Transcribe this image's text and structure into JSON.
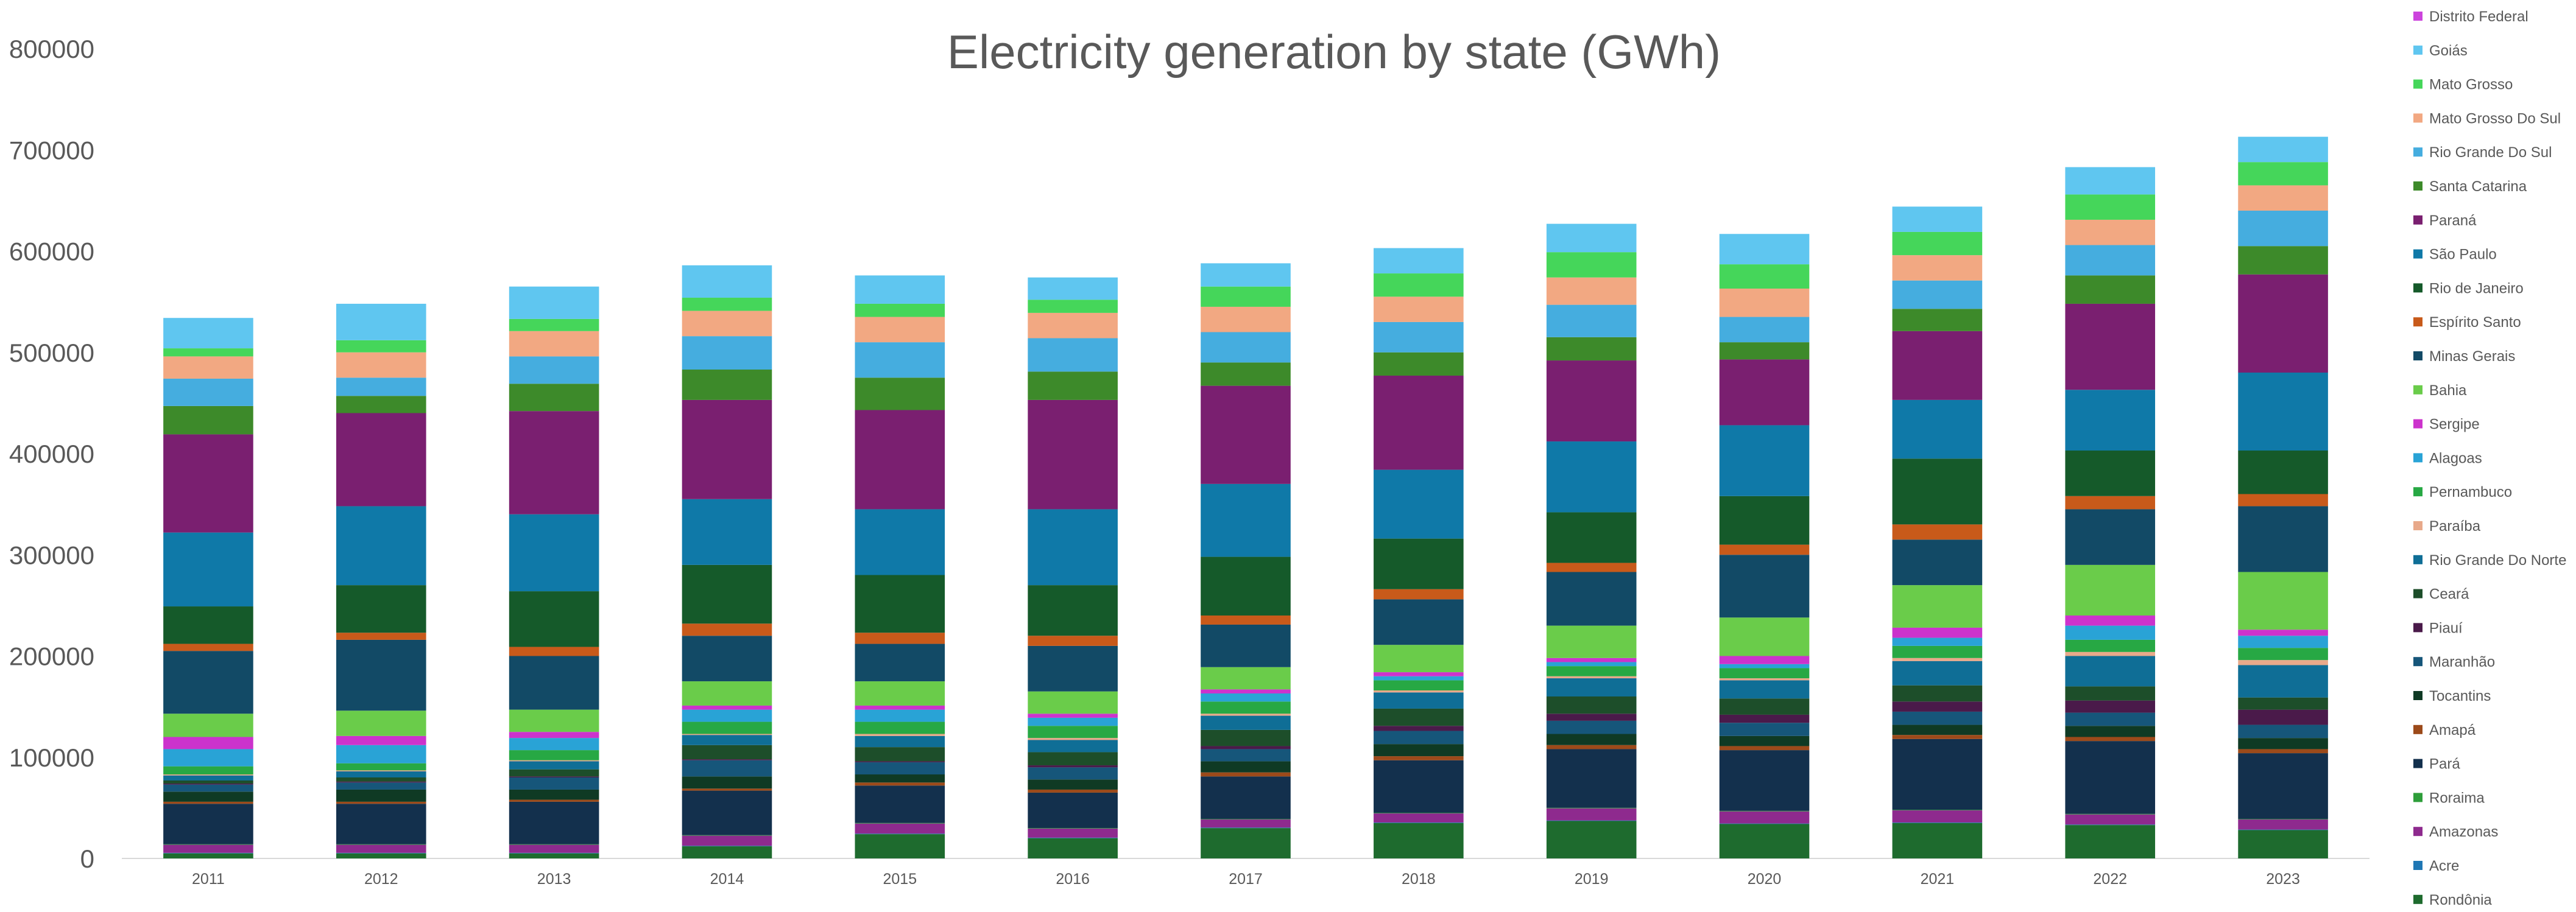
{
  "chart_data": {
    "type": "bar",
    "stacked": true,
    "title": "Electricity generation by state (GWh)",
    "xlabel": "",
    "ylabel": "",
    "ylim": [
      0,
      800000
    ],
    "yticks": [
      0,
      100000,
      200000,
      300000,
      400000,
      500000,
      600000,
      700000,
      800000
    ],
    "grid": false,
    "legend_position": "right",
    "categories": [
      "2011",
      "2012",
      "2013",
      "2014",
      "2015",
      "2016",
      "2017",
      "2018",
      "2019",
      "2020",
      "2021",
      "2022",
      "2023"
    ],
    "series": [
      {
        "name": "Rondônia",
        "color": "#1e6b2e",
        "values": [
          5000,
          5000,
          5000,
          12000,
          24000,
          20000,
          30000,
          35000,
          37000,
          34000,
          35000,
          33000,
          28000
        ]
      },
      {
        "name": "Acre",
        "color": "#1f77b4",
        "values": [
          500,
          500,
          500,
          500,
          500,
          500,
          500,
          500,
          500,
          500,
          500,
          500,
          500
        ]
      },
      {
        "name": "Amazonas",
        "color": "#8e2a8e",
        "values": [
          8000,
          8000,
          8000,
          10000,
          10000,
          9000,
          8000,
          9000,
          12000,
          12000,
          12000,
          10000,
          10000
        ]
      },
      {
        "name": "Roraima",
        "color": "#2e9e3a",
        "values": [
          500,
          500,
          500,
          500,
          500,
          500,
          500,
          500,
          500,
          500,
          500,
          500,
          500
        ]
      },
      {
        "name": "Pará",
        "color": "#13304d",
        "values": [
          40000,
          40000,
          42000,
          44000,
          37000,
          35000,
          42000,
          52000,
          58000,
          60000,
          70000,
          72000,
          65000
        ]
      },
      {
        "name": "Amapá",
        "color": "#9c4a1a",
        "values": [
          2000,
          2000,
          2000,
          2000,
          3000,
          3000,
          4000,
          4000,
          4000,
          4000,
          4000,
          4000,
          4000
        ]
      },
      {
        "name": "Tocantins",
        "color": "#0f3a24",
        "values": [
          10000,
          12000,
          10000,
          12000,
          8000,
          10000,
          11000,
          12000,
          11000,
          10000,
          10000,
          11000,
          11000
        ]
      },
      {
        "name": "Maranhão",
        "color": "#16567a",
        "values": [
          7000,
          7000,
          12000,
          16000,
          12000,
          12000,
          12000,
          13000,
          13000,
          13000,
          13000,
          13000,
          13000
        ]
      },
      {
        "name": "Piauí",
        "color": "#4a1a4a",
        "values": [
          1000,
          1000,
          1000,
          1000,
          1000,
          2000,
          3000,
          5000,
          7000,
          8000,
          10000,
          12000,
          15000
        ]
      },
      {
        "name": "Ceará",
        "color": "#1d4e2a",
        "values": [
          3000,
          4000,
          7000,
          14000,
          14000,
          13000,
          16000,
          17000,
          17000,
          16000,
          16000,
          14000,
          12000
        ]
      },
      {
        "name": "Rio Grande Do Norte",
        "color": "#0f6e96",
        "values": [
          5000,
          6000,
          8000,
          10000,
          11000,
          12000,
          14000,
          16000,
          18000,
          18000,
          24000,
          30000,
          32000
        ]
      },
      {
        "name": "Paraíba",
        "color": "#e8a98a",
        "values": [
          1000,
          1000,
          1000,
          1000,
          2000,
          2000,
          2000,
          2000,
          2000,
          2000,
          3000,
          4000,
          5000
        ]
      },
      {
        "name": "Pernambuco",
        "color": "#27a844",
        "values": [
          8000,
          7000,
          10000,
          12000,
          12000,
          12000,
          12000,
          10000,
          10000,
          10000,
          12000,
          12000,
          12000
        ]
      },
      {
        "name": "Alagoas",
        "color": "#29a3d6",
        "values": [
          17000,
          18000,
          12000,
          12000,
          12000,
          8000,
          8000,
          4000,
          4000,
          4000,
          8000,
          14000,
          12000
        ]
      },
      {
        "name": "Sergipe",
        "color": "#cc33cc",
        "values": [
          12000,
          9000,
          6000,
          4000,
          4000,
          4000,
          4000,
          4000,
          4000,
          8000,
          10000,
          10000,
          6000
        ]
      },
      {
        "name": "Bahia",
        "color": "#6acc4a",
        "values": [
          23000,
          25000,
          22000,
          24000,
          24000,
          22000,
          22000,
          27000,
          32000,
          38000,
          42000,
          50000,
          57000
        ]
      },
      {
        "name": "Minas Gerais",
        "color": "#124a66",
        "values": [
          62000,
          70000,
          53000,
          45000,
          37000,
          45000,
          42000,
          45000,
          53000,
          62000,
          45000,
          55000,
          65000
        ]
      },
      {
        "name": "Espírito Santo",
        "color": "#c85a1a",
        "values": [
          7000,
          7000,
          9000,
          12000,
          11000,
          10000,
          9000,
          10000,
          9000,
          10000,
          15000,
          13000,
          12000
        ]
      },
      {
        "name": "Rio de Janeiro",
        "color": "#155a2a",
        "values": [
          37000,
          47000,
          55000,
          58000,
          57000,
          50000,
          58000,
          50000,
          50000,
          48000,
          65000,
          45000,
          43000
        ]
      },
      {
        "name": "São Paulo",
        "color": "#0f79a8",
        "values": [
          73000,
          78000,
          76000,
          65000,
          65000,
          75000,
          72000,
          68000,
          70000,
          70000,
          58000,
          60000,
          77000
        ]
      },
      {
        "name": "Paraná",
        "color": "#7a1f70",
        "values": [
          97000,
          92000,
          102000,
          98000,
          98000,
          108000,
          97000,
          93000,
          80000,
          65000,
          68000,
          85000,
          97000
        ]
      },
      {
        "name": "Santa Catarina",
        "color": "#3d8a2a",
        "values": [
          28000,
          17000,
          27000,
          30000,
          32000,
          28000,
          23000,
          23000,
          23000,
          17000,
          22000,
          28000,
          28000
        ]
      },
      {
        "name": "Rio Grande Do Sul",
        "color": "#45addf",
        "values": [
          27000,
          18000,
          27000,
          33000,
          35000,
          33000,
          30000,
          30000,
          32000,
          25000,
          28000,
          30000,
          35000
        ]
      },
      {
        "name": "Mato Grosso Do Sul",
        "color": "#f2a882",
        "values": [
          22000,
          25000,
          25000,
          25000,
          25000,
          25000,
          25000,
          25000,
          27000,
          28000,
          25000,
          25000,
          25000
        ]
      },
      {
        "name": "Mato Grosso",
        "color": "#45d65a",
        "values": [
          8000,
          12000,
          12000,
          13000,
          13000,
          13000,
          20000,
          23000,
          25000,
          24000,
          23000,
          25000,
          23000
        ]
      },
      {
        "name": "Goiás",
        "color": "#5fc6f0",
        "values": [
          30000,
          36000,
          32000,
          32000,
          28000,
          22000,
          23000,
          25000,
          28000,
          30000,
          25000,
          27000,
          25000
        ]
      },
      {
        "name": "Distrito Federal",
        "color": "#cc44dd",
        "values": [
          0,
          0,
          0,
          0,
          0,
          0,
          0,
          0,
          0,
          0,
          0,
          0,
          0
        ]
      }
    ]
  }
}
